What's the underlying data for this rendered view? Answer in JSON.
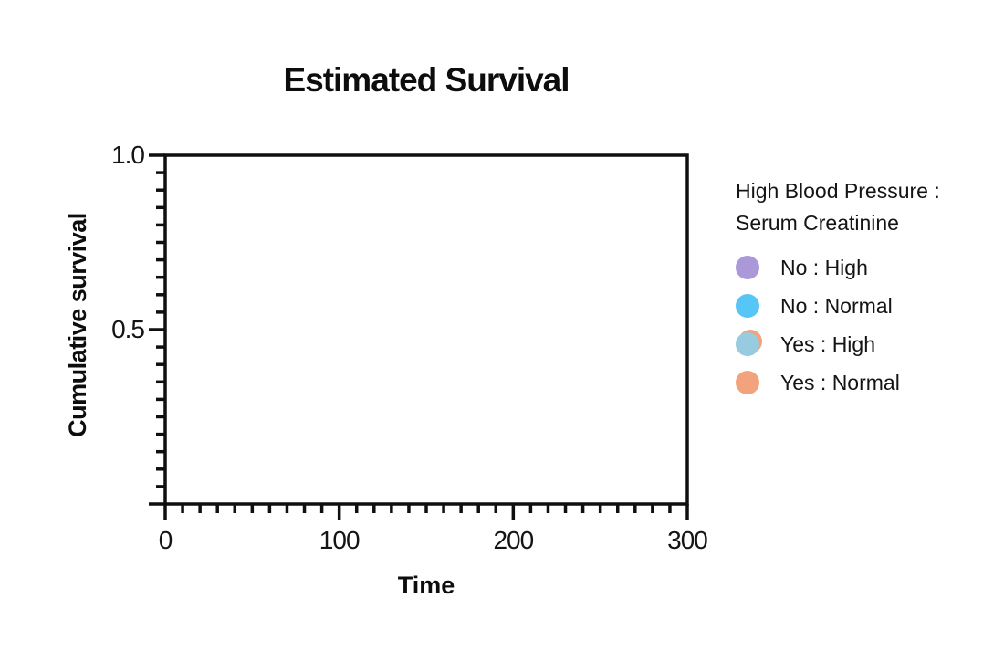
{
  "chart": {
    "title": "Estimated Survival",
    "xlabel": "Time",
    "ylabel": "Cumulative survival"
  },
  "legend": {
    "title_line1": "High Blood Pressure :",
    "title_line2": "Serum Creatinine",
    "items": [
      {
        "label": "No : High",
        "color": "#ab98d8"
      },
      {
        "label": "No : Normal",
        "color": "#55c6f6"
      },
      {
        "label": "Yes : High",
        "color": "#96cbe0",
        "under_color": "#f2a37c"
      },
      {
        "label": "Yes : Normal",
        "color": "#f2a37c"
      }
    ]
  },
  "chart_data": {
    "type": "line",
    "subtype": "kaplan-meier-survival",
    "title": "Estimated Survival",
    "xlabel": "Time",
    "ylabel": "Cumulative survival",
    "x_axis": {
      "min": 0,
      "max": 300,
      "major_ticks": [
        0,
        100,
        200,
        300
      ],
      "tick_labels": [
        "0",
        "100",
        "200",
        "300"
      ],
      "minor_tick_step": 10
    },
    "y_axis": {
      "min": 0,
      "max": 1,
      "major_ticks": [
        1.0,
        0.5,
        0.0
      ],
      "tick_labels": [
        "1.0",
        "0.5"
      ],
      "minor_tick_step": 0.05
    },
    "grid": false,
    "legend_position": "right",
    "legend_title": "High Blood Pressure : Serum Creatinine",
    "series": [
      {
        "name": "No : High",
        "color": "#ab98d8",
        "values": []
      },
      {
        "name": "No : Normal",
        "color": "#55c6f6",
        "values": []
      },
      {
        "name": "Yes : High",
        "color": "#96cbe0",
        "values": []
      },
      {
        "name": "Yes : Normal",
        "color": "#f2a37c",
        "values": []
      }
    ],
    "plot_area_empty": true,
    "axis_color": "#0f0f0f"
  }
}
